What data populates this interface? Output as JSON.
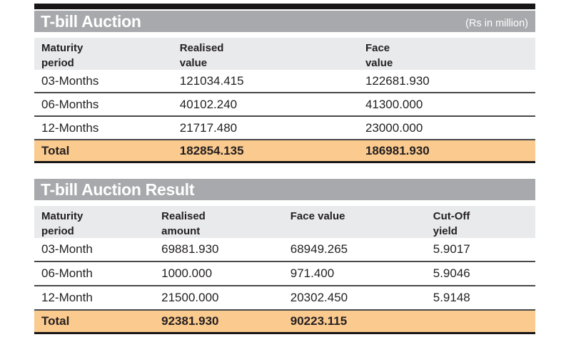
{
  "colors": {
    "top_bar": "#191617",
    "title_bar": "#a7a9ac",
    "header_band": "#e9eaec",
    "total_row": "#fbca8e",
    "text": "#231f20",
    "title_text": "#ffffff"
  },
  "table1": {
    "title": "T-bill Auction",
    "unit_note": "(Rs in million)",
    "headers": [
      [
        "Maturity",
        "period"
      ],
      [
        "Realised",
        "value"
      ],
      [
        "Face",
        "value"
      ]
    ],
    "rows": [
      [
        "03-Months",
        "121034.415",
        "122681.930"
      ],
      [
        "06-Months",
        "40102.240",
        "41300.000"
      ],
      [
        "12-Months",
        "21717.480",
        "23000.000"
      ]
    ],
    "total": [
      "Total",
      "182854.135",
      "186981.930"
    ]
  },
  "table2": {
    "title": "T-bill Auction Result",
    "headers": [
      [
        "Maturity",
        "period"
      ],
      [
        "Realised",
        "amount"
      ],
      [
        "Face value",
        ""
      ],
      [
        "Cut-Off",
        "yield"
      ]
    ],
    "rows": [
      [
        "03-Month",
        "69881.930",
        "68949.265",
        "5.9017"
      ],
      [
        "06-Month",
        "1000.000",
        "971.400",
        "5.9046"
      ],
      [
        "12-Month",
        "21500.000",
        "20302.450",
        "5.9148"
      ]
    ],
    "total": [
      "Total",
      "92381.930",
      "90223.115",
      ""
    ]
  }
}
